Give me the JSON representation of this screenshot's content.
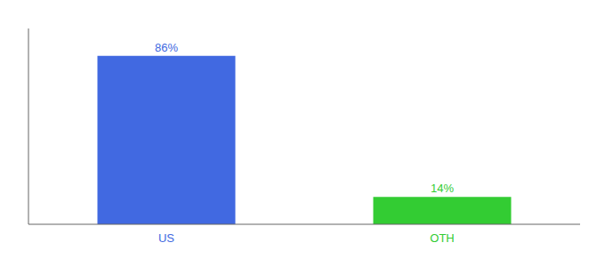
{
  "chart_data": {
    "type": "bar",
    "categories": [
      "US",
      "OTH"
    ],
    "values": [
      86,
      14
    ],
    "value_labels": [
      "86%",
      "14%"
    ],
    "colors": [
      "#4169e1",
      "#33cc33"
    ],
    "ylim": [
      0,
      100
    ],
    "data_labels": true,
    "tick_labels": "x",
    "grid": false
  }
}
